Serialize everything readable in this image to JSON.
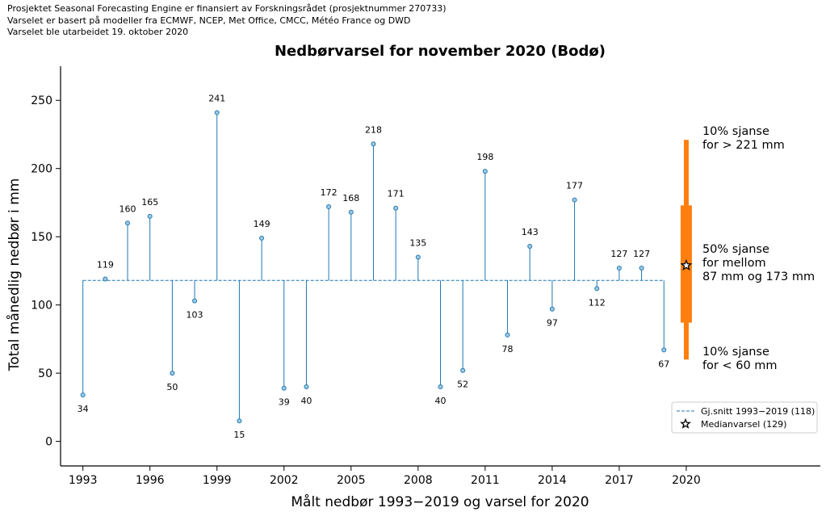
{
  "header_lines": [
    "Prosjektet Seasonal Forecasting Engine er finansiert av Forskningsrådet (prosjektnummer 270733)",
    "Varselet er basert på modeller fra ECMWF, NCEP, Met Office, CMCC, Météo France og DWD",
    "Varselet ble utarbeidet 19. oktober 2020"
  ],
  "chart_data": {
    "type": "lollipop",
    "title": "Nedbørvarsel for november 2020 (Bodø)",
    "xlabel": "Målt nedbør 1993−2019 og varsel for 2020",
    "ylabel": "Total månedlig nedbør i mm",
    "xlim": [
      1992,
      2026
    ],
    "ylim": [
      -18,
      275
    ],
    "x_ticks": [
      1993,
      1996,
      1999,
      2002,
      2005,
      2008,
      2011,
      2014,
      2017,
      2020
    ],
    "y_ticks": [
      0,
      50,
      100,
      150,
      200,
      250
    ],
    "baseline": 118,
    "observations": {
      "years": [
        1993,
        1994,
        1995,
        1996,
        1997,
        1998,
        1999,
        2000,
        2001,
        2002,
        2003,
        2004,
        2005,
        2006,
        2007,
        2008,
        2009,
        2010,
        2011,
        2012,
        2013,
        2014,
        2015,
        2016,
        2017,
        2018,
        2019
      ],
      "values": [
        34,
        119,
        160,
        165,
        50,
        103,
        241,
        15,
        149,
        39,
        40,
        172,
        168,
        218,
        171,
        135,
        40,
        52,
        198,
        78,
        143,
        97,
        177,
        112,
        127,
        127,
        67
      ]
    },
    "forecast": {
      "year": 2020,
      "median": 129,
      "p10": 60,
      "p25": 87,
      "p75": 173,
      "p90": 221,
      "color": "#ff7f0e"
    },
    "series_color": "#1f77b4",
    "annotations": {
      "upper": [
        "10% sjanse",
        "for > 221 mm"
      ],
      "middle": [
        "50% sjanse",
        "for mellom",
        "87 mm og 173 mm"
      ],
      "lower": [
        "10% sjanse",
        "for < 60 mm"
      ]
    },
    "legend": {
      "position": "lower-right",
      "entries": [
        "Gj.snitt 1993−2019 (118)",
        "Medianvarsel (129)"
      ]
    }
  }
}
